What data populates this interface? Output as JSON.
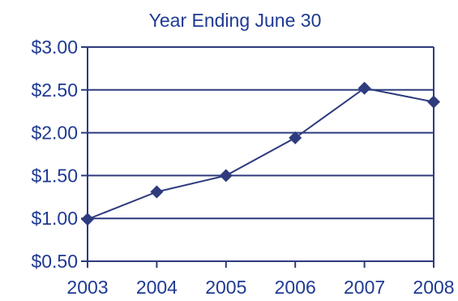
{
  "chart_data": {
    "type": "line",
    "title": "Year Ending June 30",
    "xlabel": "",
    "ylabel": "",
    "categories": [
      "2003",
      "2004",
      "2005",
      "2006",
      "2007",
      "2008"
    ],
    "series": [
      {
        "values": [
          0.99,
          1.31,
          1.5,
          1.94,
          2.52,
          2.36
        ]
      }
    ],
    "ylim": [
      0.5,
      3.0
    ],
    "yticks": [
      0.5,
      1.0,
      1.5,
      2.0,
      2.5,
      3.0
    ],
    "ytick_labels": [
      "$0.50",
      "$1.00",
      "$1.50",
      "$2.00",
      "$2.50",
      "$3.00"
    ],
    "grid": true,
    "legend": "none",
    "marker": "diamond",
    "colors": {
      "series": "#2e3b7e",
      "grid": "#2e3b7e",
      "text": "#1f3a93",
      "axis": "#2e3b7e"
    }
  }
}
